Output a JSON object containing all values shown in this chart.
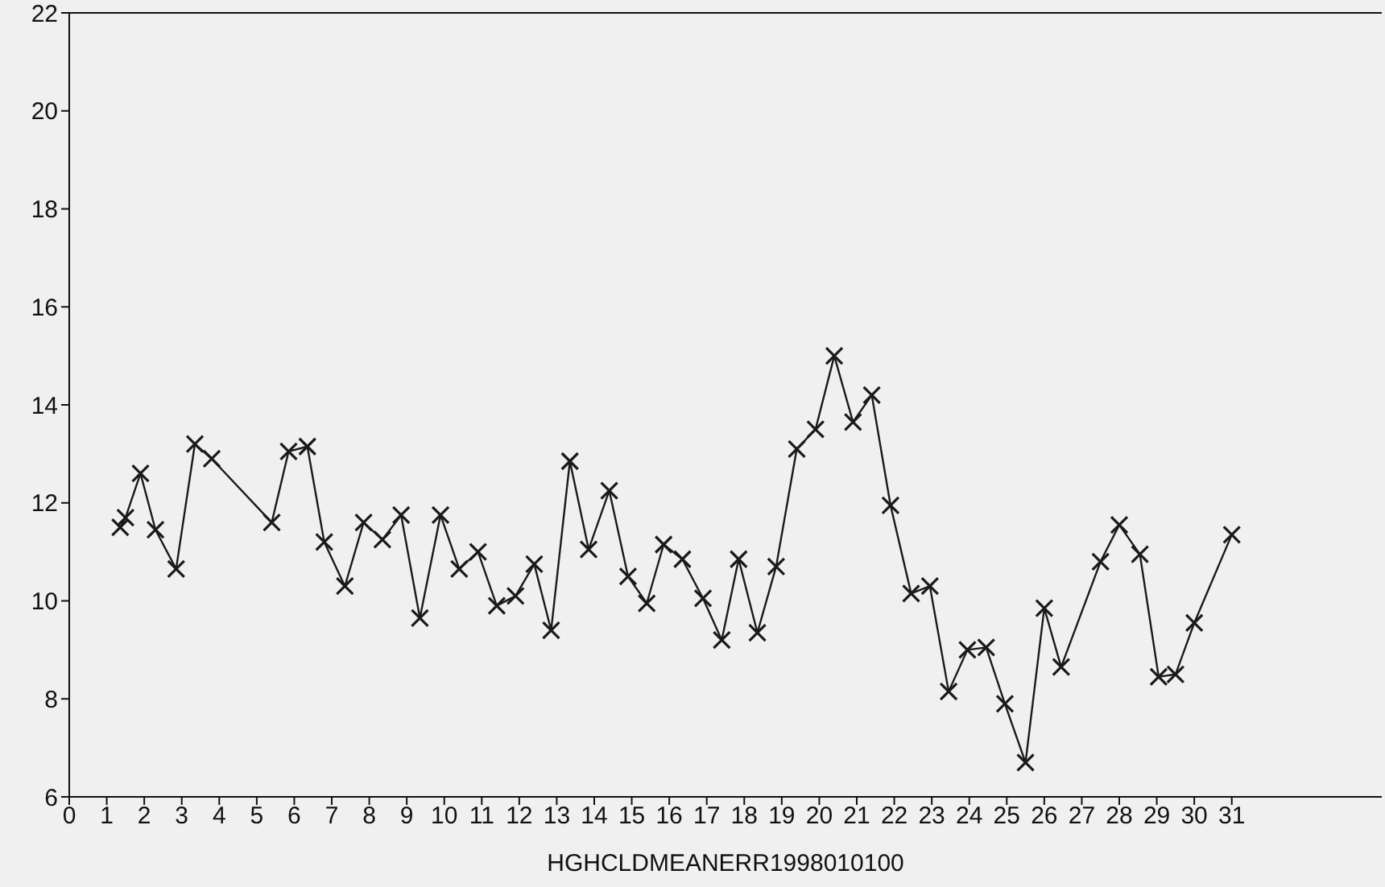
{
  "chart_data": {
    "type": "line",
    "xlabel": "HGHCLDMEANERR1998010100",
    "xlim": [
      0,
      35
    ],
    "xticks": [
      0,
      1,
      2,
      3,
      4,
      5,
      6,
      7,
      8,
      9,
      10,
      11,
      12,
      13,
      14,
      15,
      16,
      17,
      18,
      19,
      20,
      21,
      22,
      23,
      24,
      25,
      26,
      27,
      28,
      29,
      30,
      31
    ],
    "ylim": [
      6,
      22
    ],
    "yticks": [
      6,
      8,
      10,
      12,
      14,
      16,
      18,
      20,
      22
    ],
    "grid": false,
    "legend": false,
    "marker": "cross",
    "line_style": "solid",
    "series": [
      {
        "color": "#1a1a1a",
        "x": [
          1.36,
          1.5,
          1.9,
          2.3,
          2.85,
          3.35,
          3.8,
          5.4,
          5.85,
          6.35,
          6.8,
          7.35,
          7.85,
          8.35,
          8.85,
          9.35,
          9.9,
          10.4,
          10.9,
          11.4,
          11.9,
          12.4,
          12.85,
          13.35,
          13.85,
          14.4,
          14.9,
          15.4,
          15.85,
          16.35,
          16.9,
          17.4,
          17.85,
          18.35,
          18.85,
          19.4,
          19.9,
          20.4,
          20.9,
          21.4,
          21.9,
          22.45,
          22.95,
          23.45,
          23.95,
          24.45,
          24.95,
          25.5,
          26.0,
          26.45,
          27.5,
          28.0,
          28.55,
          29.05,
          29.5,
          30.0,
          31.0
        ],
        "values": [
          11.5,
          11.7,
          12.6,
          11.45,
          10.65,
          13.2,
          12.9,
          11.6,
          13.05,
          13.15,
          11.2,
          10.3,
          11.6,
          11.25,
          11.75,
          9.65,
          11.75,
          10.65,
          11.0,
          9.9,
          10.1,
          10.75,
          9.4,
          12.85,
          11.05,
          12.25,
          10.5,
          9.95,
          11.15,
          10.85,
          10.05,
          9.2,
          10.85,
          9.35,
          10.7,
          13.1,
          13.5,
          15.0,
          13.65,
          14.2,
          11.95,
          10.15,
          10.3,
          8.15,
          9.0,
          9.05,
          7.9,
          6.7,
          9.85,
          8.65,
          10.8,
          11.55,
          10.95,
          8.45,
          8.5,
          9.55,
          11.35
        ]
      }
    ]
  }
}
